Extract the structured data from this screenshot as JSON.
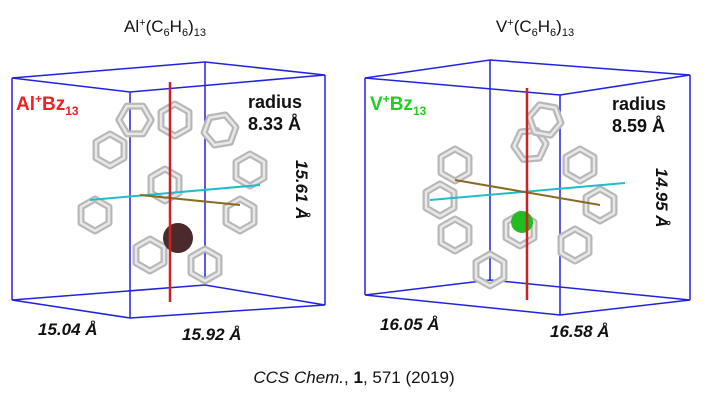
{
  "panels": [
    {
      "title": {
        "element": "Al",
        "charge": "+",
        "open": "(C",
        "c_count": "6",
        "h": "H",
        "h_count": "6",
        "close": ")",
        "n": "13"
      },
      "label": {
        "element": "Al",
        "charge": "+",
        "ligand": "Bz",
        "n": "13"
      },
      "radius": {
        "word": "radius",
        "value": "8.33 Å"
      },
      "height": "15.61 Å",
      "depth": "15.04 Å",
      "width": "15.92 Å"
    },
    {
      "title": {
        "element": "V",
        "charge": "+",
        "open": "(C",
        "c_count": "6",
        "h": "H",
        "h_count": "6",
        "close": ")",
        "n": "13"
      },
      "label": {
        "element": "V",
        "charge": "+",
        "ligand": "Bz",
        "n": "13"
      },
      "radius": {
        "word": "radius",
        "value": "8.59 Å"
      },
      "height": "14.95 Å",
      "depth": "16.05 Å",
      "width": "16.58 Å"
    }
  ],
  "citation": {
    "journal": "CCS Chem.",
    "sep": ", ",
    "volume": "1",
    "rest": ", 571 (2019)"
  }
}
